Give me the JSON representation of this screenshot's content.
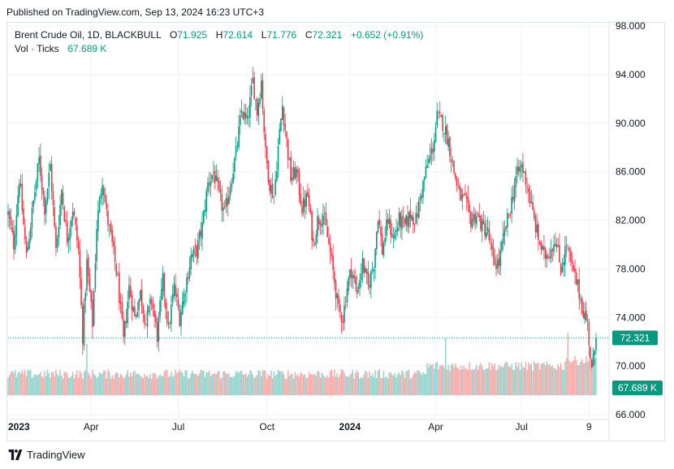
{
  "header": {
    "published": "Published on TradingView.com, Sep 13, 2024 16:23 UTC+3"
  },
  "legend": {
    "symbol": "Brent Crude Oil, 1D, BLACKBULL",
    "open_label": "O",
    "open": "71.925",
    "high_label": "H",
    "high": "72.614",
    "low_label": "L",
    "low": "71.776",
    "close_label": "C",
    "close": "72.321",
    "change": "+0.652 (+0.91%)",
    "vol_label": "Vol · Ticks",
    "vol_value": "67.689 K"
  },
  "footer": {
    "brand": "TradingView"
  },
  "colors": {
    "up": "#089981",
    "down": "#f23645",
    "vol_up": "#92d2cc",
    "vol_down": "#f7a9a7",
    "grid": "#f0f3fa",
    "axis_text": "#131722",
    "price_tag": "#089981"
  },
  "chart_data": {
    "type": "candlestick",
    "title": "Brent Crude Oil, 1D, BLACKBULL",
    "ylim": [
      66.0,
      98.0
    ],
    "y_ticks": [
      "98.000",
      "94.000",
      "90.000",
      "86.000",
      "82.000",
      "78.000",
      "74.000",
      "70.000",
      "66.000"
    ],
    "x_ticks": [
      {
        "label": "2023",
        "bold": true,
        "day": 0
      },
      {
        "label": "Apr",
        "bold": false,
        "day": 59
      },
      {
        "label": "Jul",
        "bold": false,
        "day": 121
      },
      {
        "label": "Oct",
        "bold": false,
        "day": 184
      },
      {
        "label": "2024",
        "bold": true,
        "day": 243
      },
      {
        "label": "Apr",
        "bold": false,
        "day": 304
      },
      {
        "label": "Jul",
        "bold": false,
        "day": 365
      },
      {
        "label": "9",
        "bold": false,
        "day": 413
      }
    ],
    "last_price": 72.321,
    "last_price_label": "72.321",
    "last_volume_label": "67.689 K",
    "volume_max_k": 120,
    "anchors": [
      [
        0,
        82.5
      ],
      [
        4,
        80.0
      ],
      [
        8,
        85.5
      ],
      [
        13,
        79.0
      ],
      [
        18,
        83.5
      ],
      [
        22,
        87.0
      ],
      [
        26,
        83.0
      ],
      [
        30,
        86.5
      ],
      [
        34,
        79.5
      ],
      [
        38,
        84.5
      ],
      [
        42,
        80.5
      ],
      [
        46,
        83.0
      ],
      [
        50,
        79.5
      ],
      [
        53,
        72.5
      ],
      [
        56,
        78.5
      ],
      [
        60,
        73.5
      ],
      [
        63,
        81.5
      ],
      [
        67,
        85.5
      ],
      [
        70,
        82.5
      ],
      [
        74,
        80.0
      ],
      [
        78,
        77.0
      ],
      [
        82,
        72.0
      ],
      [
        86,
        76.5
      ],
      [
        90,
        74.0
      ],
      [
        94,
        76.0
      ],
      [
        98,
        73.5
      ],
      [
        102,
        75.5
      ],
      [
        106,
        72.5
      ],
      [
        110,
        77.0
      ],
      [
        114,
        73.0
      ],
      [
        118,
        76.5
      ],
      [
        122,
        74.0
      ],
      [
        126,
        76.5
      ],
      [
        130,
        79.0
      ],
      [
        134,
        79.5
      ],
      [
        138,
        81.5
      ],
      [
        142,
        85.0
      ],
      [
        146,
        86.0
      ],
      [
        150,
        84.0
      ],
      [
        154,
        82.5
      ],
      [
        158,
        85.0
      ],
      [
        162,
        87.5
      ],
      [
        166,
        91.0
      ],
      [
        170,
        90.0
      ],
      [
        174,
        93.5
      ],
      [
        177,
        91.0
      ],
      [
        180,
        93.5
      ],
      [
        183,
        87.5
      ],
      [
        186,
        85.0
      ],
      [
        189,
        84.0
      ],
      [
        192,
        88.0
      ],
      [
        195,
        91.5
      ],
      [
        198,
        88.5
      ],
      [
        201,
        85.5
      ],
      [
        205,
        86.0
      ],
      [
        209,
        83.0
      ],
      [
        213,
        84.0
      ],
      [
        217,
        80.0
      ],
      [
        220,
        82.0
      ],
      [
        224,
        82.5
      ],
      [
        228,
        80.0
      ],
      [
        232,
        77.0
      ],
      [
        235,
        74.5
      ],
      [
        238,
        74.0
      ],
      [
        241,
        76.5
      ],
      [
        244,
        78.0
      ],
      [
        248,
        76.0
      ],
      [
        252,
        78.5
      ],
      [
        256,
        76.5
      ],
      [
        260,
        78.5
      ],
      [
        263,
        82.5
      ],
      [
        266,
        79.5
      ],
      [
        270,
        82.0
      ],
      [
        274,
        80.5
      ],
      [
        278,
        82.0
      ],
      [
        282,
        81.5
      ],
      [
        286,
        82.5
      ],
      [
        290,
        82.0
      ],
      [
        294,
        84.5
      ],
      [
        298,
        86.5
      ],
      [
        302,
        88.0
      ],
      [
        305,
        90.5
      ],
      [
        309,
        90.0
      ],
      [
        313,
        88.5
      ],
      [
        317,
        86.0
      ],
      [
        321,
        84.0
      ],
      [
        325,
        83.5
      ],
      [
        329,
        82.0
      ],
      [
        333,
        82.5
      ],
      [
        337,
        81.5
      ],
      [
        341,
        81.0
      ],
      [
        345,
        78.5
      ],
      [
        349,
        78.5
      ],
      [
        353,
        81.0
      ],
      [
        357,
        83.0
      ],
      [
        361,
        85.5
      ],
      [
        365,
        86.5
      ],
      [
        369,
        85.0
      ],
      [
        373,
        82.5
      ],
      [
        377,
        80.5
      ],
      [
        381,
        79.0
      ],
      [
        385,
        79.5
      ],
      [
        389,
        80.5
      ],
      [
        393,
        78.0
      ],
      [
        397,
        80.0
      ],
      [
        401,
        78.0
      ],
      [
        405,
        76.5
      ],
      [
        409,
        74.5
      ],
      [
        412,
        73.5
      ],
      [
        415,
        69.5
      ],
      [
        418,
        72.3
      ]
    ]
  }
}
